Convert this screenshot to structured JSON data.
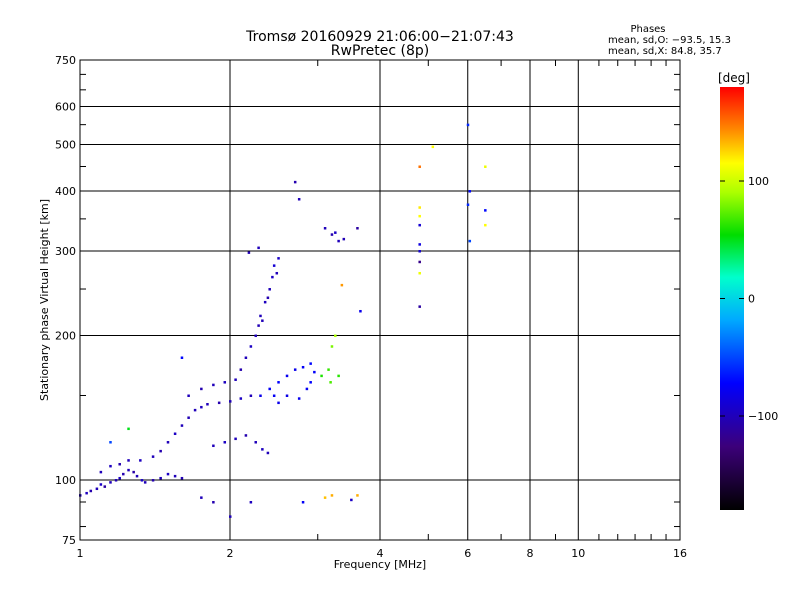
{
  "chart_data": {
    "type": "scatter",
    "title": "Tromsø 20160929 21:06:00−21:07:43",
    "subtitle": "RwPretec (8p)",
    "xlabel": "Frequency [MHz]",
    "ylabel": "Stationary phase Virtual Height [km]",
    "x_scale": "log",
    "y_scale": "log",
    "xlim": [
      1,
      16
    ],
    "ylim": [
      75,
      750
    ],
    "x_ticks": [
      1,
      2,
      4,
      6,
      8,
      10,
      16
    ],
    "x_tick_labels": [
      "1",
      "2",
      "4",
      "6",
      "8",
      "10",
      "16"
    ],
    "y_ticks": [
      75,
      100,
      200,
      300,
      400,
      500,
      600,
      750
    ],
    "y_tick_labels": [
      "75",
      "100",
      "200",
      "300",
      "400",
      "500",
      "600",
      "750"
    ],
    "grid": true,
    "phases_box": {
      "title": "Phases",
      "line_o": "mean, sd,O: −93.5, 15.3",
      "line_x": "mean, sd,X:  84.8, 35.7"
    },
    "colorbar": {
      "label": "[deg]",
      "range": [
        -180,
        180
      ],
      "ticks": [
        -100,
        0,
        100
      ],
      "tick_labels": [
        "−100",
        "0",
        "100"
      ]
    },
    "series": [
      {
        "points": [
          [
            1.0,
            93,
            -100
          ],
          [
            1.03,
            94,
            -98
          ],
          [
            1.05,
            95,
            -105
          ],
          [
            1.08,
            96,
            -100
          ],
          [
            1.1,
            98,
            -95
          ],
          [
            1.12,
            97,
            -110
          ],
          [
            1.15,
            99,
            -100
          ],
          [
            1.18,
            100,
            -102
          ],
          [
            1.2,
            101,
            -96
          ],
          [
            1.22,
            103,
            -104
          ],
          [
            1.25,
            105,
            -100
          ],
          [
            1.28,
            104,
            -108
          ],
          [
            1.3,
            102,
            -100
          ],
          [
            1.33,
            100,
            -95
          ],
          [
            1.35,
            99,
            -100
          ],
          [
            1.4,
            100,
            -104
          ],
          [
            1.45,
            101,
            -100
          ],
          [
            1.5,
            103,
            -96
          ],
          [
            1.55,
            102,
            -100
          ],
          [
            1.6,
            101,
            -102
          ],
          [
            1.1,
            104,
            -100
          ],
          [
            1.15,
            107,
            -98
          ],
          [
            1.2,
            108,
            -105
          ],
          [
            1.25,
            110,
            -100
          ],
          [
            1.32,
            110,
            -97
          ],
          [
            1.4,
            112,
            -100
          ],
          [
            1.45,
            115,
            -104
          ],
          [
            1.5,
            120,
            -100
          ],
          [
            1.55,
            125,
            -96
          ],
          [
            1.6,
            130,
            -100
          ],
          [
            1.65,
            135,
            -102
          ],
          [
            1.7,
            140,
            -100
          ],
          [
            1.75,
            142,
            -98
          ],
          [
            1.8,
            144,
            -100
          ],
          [
            1.9,
            145,
            -105
          ],
          [
            2.0,
            146,
            -100
          ],
          [
            2.1,
            148,
            -96
          ],
          [
            2.2,
            150,
            -100
          ],
          [
            1.65,
            150,
            -100
          ],
          [
            1.75,
            155,
            -104
          ],
          [
            1.85,
            158,
            -100
          ],
          [
            1.95,
            160,
            -98
          ],
          [
            2.05,
            162,
            -100
          ],
          [
            2.1,
            170,
            -105
          ],
          [
            2.15,
            180,
            -100
          ],
          [
            2.2,
            190,
            -96
          ],
          [
            2.25,
            200,
            -100
          ],
          [
            2.28,
            210,
            -102
          ],
          [
            2.3,
            220,
            -100
          ],
          [
            2.35,
            235,
            -98
          ],
          [
            2.4,
            250,
            -100
          ],
          [
            2.43,
            265,
            -96
          ],
          [
            2.45,
            280,
            -90
          ],
          [
            2.5,
            290,
            -95
          ],
          [
            2.48,
            270,
            -100
          ],
          [
            2.38,
            240,
            -104
          ],
          [
            2.32,
            215,
            -100
          ],
          [
            1.85,
            118,
            -100
          ],
          [
            1.95,
            120,
            -96
          ],
          [
            2.05,
            122,
            -100
          ],
          [
            2.15,
            124,
            -104
          ],
          [
            2.25,
            120,
            -100
          ],
          [
            2.32,
            116,
            -98
          ],
          [
            2.38,
            114,
            -100
          ],
          [
            2.3,
            150,
            -80
          ],
          [
            2.4,
            155,
            -75
          ],
          [
            2.5,
            160,
            -72
          ],
          [
            2.6,
            165,
            -78
          ],
          [
            2.7,
            170,
            -80
          ],
          [
            2.8,
            172,
            -75
          ],
          [
            2.9,
            175,
            -70
          ],
          [
            2.6,
            150,
            -82
          ],
          [
            2.75,
            148,
            -78
          ],
          [
            2.85,
            155,
            -76
          ],
          [
            2.9,
            160,
            -72
          ],
          [
            2.95,
            168,
            -74
          ],
          [
            2.5,
            145,
            -80
          ],
          [
            2.45,
            150,
            -76
          ],
          [
            1.6,
            180,
            -70
          ],
          [
            1.75,
            92,
            -100
          ],
          [
            1.85,
            90,
            -104
          ],
          [
            2.0,
            84,
            -100
          ],
          [
            2.2,
            90,
            -98
          ],
          [
            2.8,
            90,
            -75
          ],
          [
            3.1,
            335,
            -100
          ],
          [
            3.2,
            325,
            -104
          ],
          [
            3.3,
            315,
            -100
          ],
          [
            3.25,
            328,
            -96
          ],
          [
            3.38,
            318,
            -102
          ],
          [
            2.7,
            418,
            -104
          ],
          [
            2.75,
            385,
            -100
          ],
          [
            2.18,
            298,
            -102
          ],
          [
            2.28,
            305,
            -100
          ],
          [
            3.05,
            165,
            60
          ],
          [
            3.15,
            170,
            65
          ],
          [
            3.2,
            190,
            80
          ],
          [
            3.25,
            200,
            90
          ],
          [
            3.18,
            160,
            70
          ],
          [
            3.3,
            165,
            62
          ],
          [
            3.35,
            255,
            140
          ],
          [
            3.1,
            92,
            130
          ],
          [
            3.2,
            93,
            135
          ],
          [
            3.5,
            91,
            -95
          ],
          [
            3.6,
            93,
            135
          ],
          [
            3.65,
            225,
            -80
          ],
          [
            3.6,
            335,
            -110
          ],
          [
            4.8,
            450,
            150
          ],
          [
            4.8,
            370,
            120
          ],
          [
            4.8,
            355,
            115
          ],
          [
            4.8,
            340,
            -90
          ],
          [
            4.8,
            310,
            -85
          ],
          [
            4.8,
            300,
            -90
          ],
          [
            4.8,
            285,
            -120
          ],
          [
            4.8,
            270,
            110
          ],
          [
            4.8,
            230,
            -110
          ],
          [
            5.1,
            495,
            115
          ],
          [
            6.0,
            550,
            -60
          ],
          [
            6.05,
            400,
            -70
          ],
          [
            6.0,
            375,
            -60
          ],
          [
            6.05,
            315,
            -50
          ],
          [
            6.5,
            450,
            110
          ],
          [
            6.5,
            365,
            -70
          ],
          [
            6.5,
            340,
            115
          ],
          [
            1.25,
            128,
            50
          ],
          [
            1.15,
            120,
            -50
          ]
        ]
      }
    ]
  }
}
